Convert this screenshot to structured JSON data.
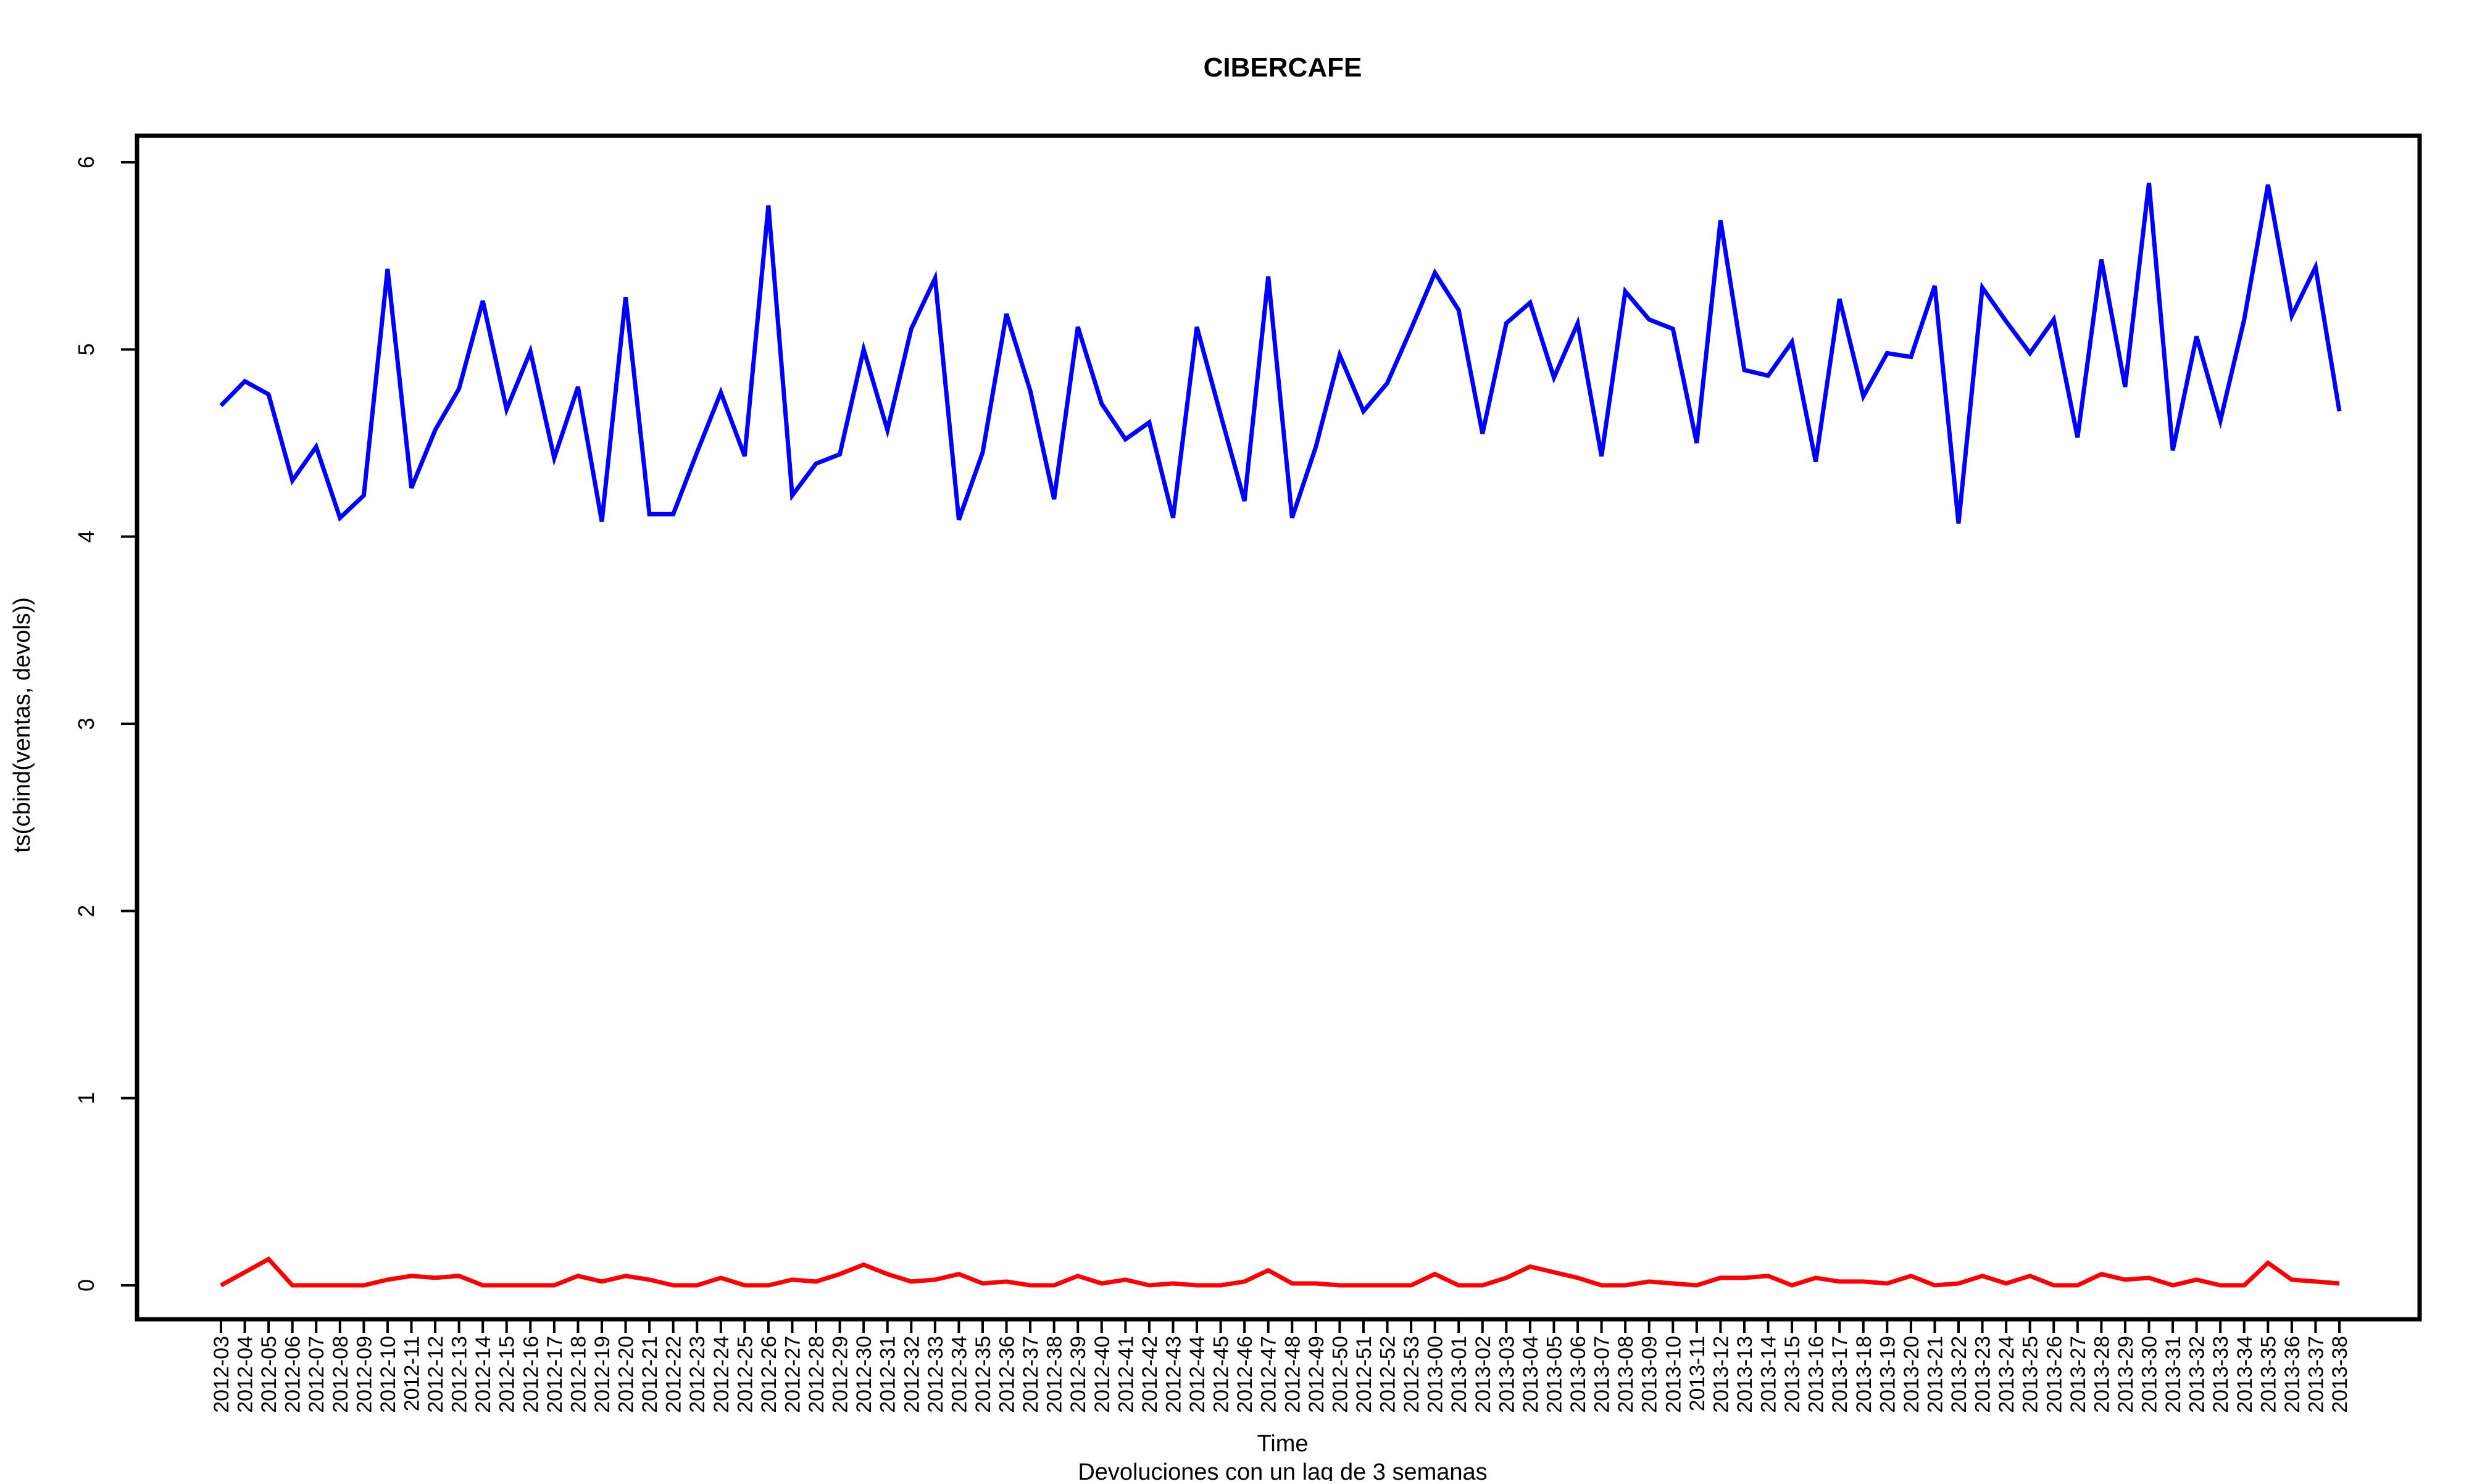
{
  "chart_data": {
    "type": "line",
    "title": "CIBERCAFE",
    "xlabel": "Time",
    "ylabel": "ts(cbind(ventas, devols))",
    "subtitle": "Devoluciones con un lag de 3 semanas",
    "ylim": [
      0,
      6
    ],
    "yticks": [
      0,
      1,
      2,
      3,
      4,
      5,
      6
    ],
    "grid": false,
    "legend": "none",
    "categories": [
      "2012-03",
      "2012-04",
      "2012-05",
      "2012-06",
      "2012-07",
      "2012-08",
      "2012-09",
      "2012-10",
      "2012-11",
      "2012-12",
      "2012-13",
      "2012-14",
      "2012-15",
      "2012-16",
      "2012-17",
      "2012-18",
      "2012-19",
      "2012-20",
      "2012-21",
      "2012-22",
      "2012-23",
      "2012-24",
      "2012-25",
      "2012-26",
      "2012-27",
      "2012-28",
      "2012-29",
      "2012-30",
      "2012-31",
      "2012-32",
      "2012-33",
      "2012-34",
      "2012-35",
      "2012-36",
      "2012-37",
      "2012-38",
      "2012-39",
      "2012-40",
      "2012-41",
      "2012-42",
      "2012-43",
      "2012-44",
      "2012-45",
      "2012-46",
      "2012-47",
      "2012-48",
      "2012-49",
      "2012-50",
      "2012-51",
      "2012-52",
      "2012-53",
      "2013-00",
      "2013-01",
      "2013-02",
      "2013-03",
      "2013-04",
      "2013-05",
      "2013-06",
      "2013-07",
      "2013-08",
      "2013-09",
      "2013-10",
      "2013-11",
      "2013-12",
      "2013-13",
      "2013-14",
      "2013-15",
      "2013-16",
      "2013-17",
      "2013-18",
      "2013-19",
      "2013-20",
      "2013-21",
      "2013-22",
      "2013-23",
      "2013-24",
      "2013-25",
      "2013-26",
      "2013-27",
      "2013-28",
      "2013-29",
      "2013-30",
      "2013-31",
      "2013-32",
      "2013-33",
      "2013-34",
      "2013-35",
      "2013-36",
      "2013-37",
      "2013-38"
    ],
    "series": [
      {
        "color": "#0000ff",
        "values": [
          4.7,
          4.83,
          4.76,
          4.3,
          4.48,
          4.1,
          4.22,
          5.43,
          4.26,
          4.57,
          4.79,
          5.26,
          4.68,
          4.99,
          4.42,
          4.8,
          4.08,
          5.28,
          4.12,
          4.12,
          4.45,
          4.77,
          4.43,
          5.77,
          4.22,
          4.39,
          4.44,
          5.0,
          4.57,
          5.11,
          5.38,
          4.09,
          4.45,
          5.19,
          4.78,
          4.2,
          5.12,
          4.71,
          4.52,
          4.61,
          4.1,
          5.12,
          4.65,
          4.19,
          5.39,
          4.1,
          4.48,
          4.97,
          4.67,
          4.82,
          5.11,
          5.41,
          5.21,
          4.55,
          5.14,
          5.25,
          4.85,
          5.14,
          4.43,
          5.31,
          5.16,
          5.11,
          4.5,
          5.69,
          4.89,
          4.86,
          5.04,
          4.4,
          5.27,
          4.75,
          4.98,
          4.96,
          5.34,
          4.07,
          5.33,
          5.15,
          4.98,
          5.16,
          4.53,
          5.48,
          4.8,
          5.89,
          4.46,
          5.07,
          4.62,
          5.16,
          5.88,
          5.18,
          5.44,
          4.67
        ]
      },
      {
        "color": "#ff0000",
        "values": [
          0.0,
          0.07,
          0.14,
          0.0,
          0.0,
          0.0,
          0.0,
          0.03,
          0.05,
          0.04,
          0.05,
          0.0,
          0.0,
          0.0,
          0.0,
          0.05,
          0.02,
          0.05,
          0.03,
          0.0,
          0.0,
          0.04,
          0.0,
          0.0,
          0.03,
          0.02,
          0.06,
          0.11,
          0.06,
          0.02,
          0.03,
          0.06,
          0.01,
          0.02,
          0.0,
          0.0,
          0.05,
          0.01,
          0.03,
          0.0,
          0.01,
          0.0,
          0.0,
          0.02,
          0.08,
          0.01,
          0.01,
          0.0,
          0.0,
          0.0,
          0.0,
          0.06,
          0.0,
          0.0,
          0.04,
          0.1,
          0.07,
          0.04,
          0.0,
          0.0,
          0.02,
          0.01,
          0.0,
          0.04,
          0.04,
          0.05,
          0.0,
          0.04,
          0.02,
          0.02,
          0.01,
          0.05,
          0.0,
          0.01,
          0.05,
          0.01,
          0.05,
          0.0,
          0.0,
          0.06,
          0.03,
          0.04,
          0.0,
          0.03,
          0.0,
          0.0,
          0.12,
          0.03,
          0.02,
          0.01
        ]
      }
    ]
  }
}
